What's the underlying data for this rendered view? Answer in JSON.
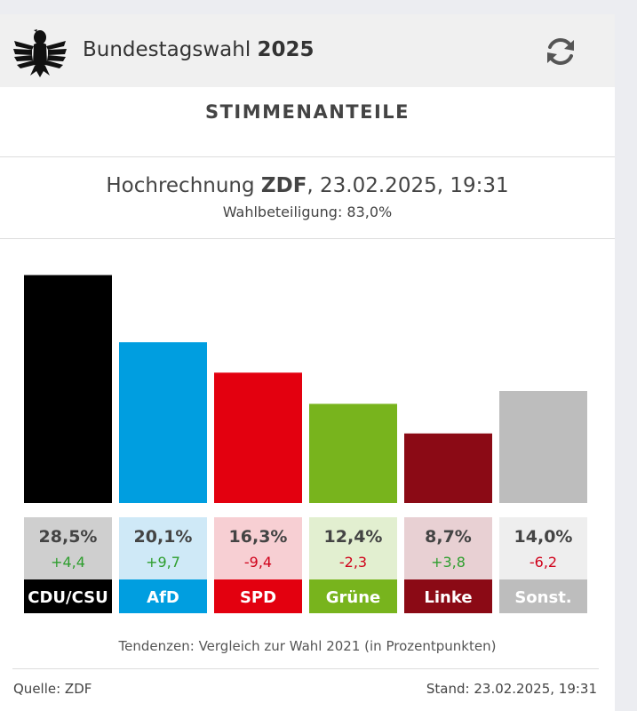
{
  "header": {
    "title_prefix": "Bundestagswahl",
    "title_year": "2025",
    "logo_icon": "federal-eagle-icon",
    "refresh_icon": "refresh-icon"
  },
  "section_title": "STIMMENANTEILE",
  "subtitle": {
    "prefix": "Hochrechnung",
    "source": "ZDF",
    "datetime": ", 23.02.2025, 19:31"
  },
  "turnout": "Wahlbeteiligung: 83,0%",
  "footnote": "Tendenzen: Vergleich zur Wahl 2021 (in Prozentpunkten)",
  "footer": {
    "source": "Quelle: ZDF",
    "timestamp": "Stand: 23.02.2025, 19:31"
  },
  "chart_data": {
    "type": "bar",
    "categories": [
      "CDU/CSU",
      "AfD",
      "SPD",
      "Grüne",
      "Linke",
      "Sonst."
    ],
    "values": [
      28.5,
      20.1,
      16.3,
      12.4,
      8.7,
      14.0
    ],
    "value_labels": [
      "28,5%",
      "20,1%",
      "16,3%",
      "12,4%",
      "8,7%",
      "14,0%"
    ],
    "changes": [
      4.4,
      9.7,
      -9.4,
      -2.3,
      3.8,
      -6.2
    ],
    "change_labels": [
      "+4,4",
      "+9,7",
      "-9,4",
      "-2,3",
      "+3,8",
      "-6,2"
    ],
    "colors": [
      "#000000",
      "#009ee0",
      "#e3000f",
      "#78b41d",
      "#8b0a15",
      "#bdbdbd"
    ],
    "tints": [
      "#cfcfcf",
      "#cfe9f7",
      "#f7cfd3",
      "#e2efd0",
      "#e8d0d3",
      "#eeeeee"
    ],
    "positive_color": "#2e9e2e",
    "negative_color": "#d0021b",
    "ylim": [
      0,
      30
    ]
  }
}
